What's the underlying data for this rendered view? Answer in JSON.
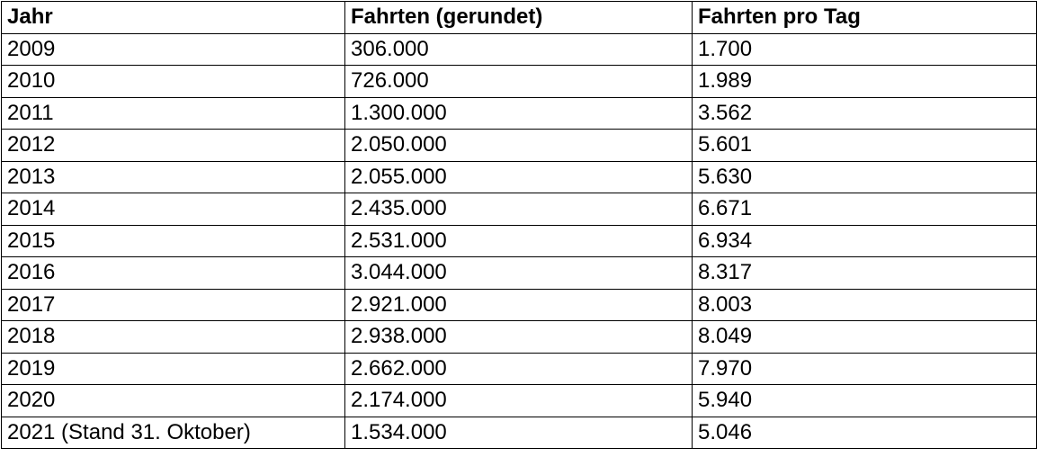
{
  "table": {
    "headers": [
      "Jahr",
      "Fahrten (gerundet)",
      "Fahrten pro Tag"
    ],
    "rows": [
      [
        "2009",
        "306.000",
        "1.700"
      ],
      [
        "2010",
        "726.000",
        "1.989"
      ],
      [
        "2011",
        "1.300.000",
        "3.562"
      ],
      [
        "2012",
        "2.050.000",
        "5.601"
      ],
      [
        "2013",
        "2.055.000",
        "5.630"
      ],
      [
        "2014",
        "2.435.000",
        "6.671"
      ],
      [
        "2015",
        "2.531.000",
        "6.934"
      ],
      [
        "2016",
        "3.044.000",
        "8.317"
      ],
      [
        "2017",
        "2.921.000",
        "8.003"
      ],
      [
        "2018",
        "2.938.000",
        "8.049"
      ],
      [
        "2019",
        "2.662.000",
        "7.970"
      ],
      [
        "2020",
        "2.174.000",
        "5.940"
      ],
      [
        "2021 (Stand 31. Oktober)",
        "1.534.000",
        "5.046"
      ]
    ]
  }
}
